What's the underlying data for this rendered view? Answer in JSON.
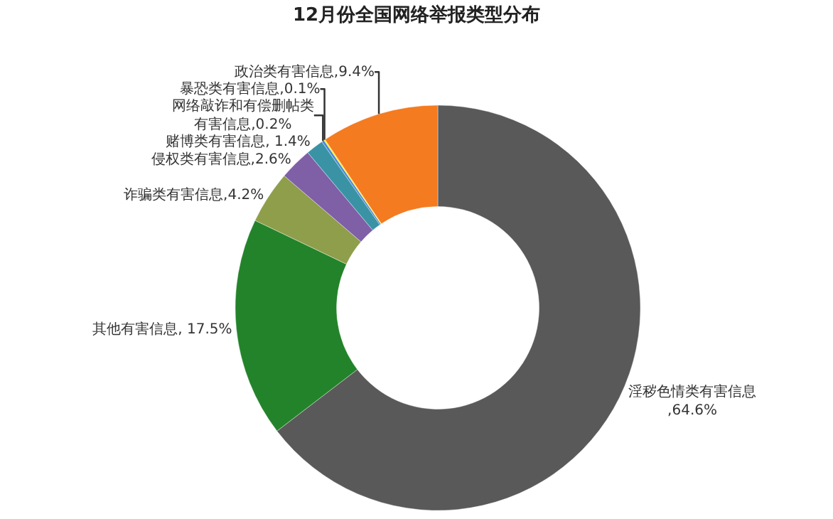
{
  "chart_data": {
    "type": "donut",
    "title": "12月份全国网络举报类型分布",
    "categories": [
      "淫秽色情类有害信息",
      "其他有害信息",
      "诈骗类有害信息",
      "侵权类有害信息",
      "赌博类有害信息",
      "网络敲诈和有偿删帖类有害信息",
      "暴恐类有害信息",
      "政治类有害信息"
    ],
    "values": [
      64.6,
      17.5,
      4.2,
      2.6,
      1.4,
      0.2,
      0.1,
      9.4
    ],
    "value_labels": [
      ",64.6%",
      ", 17.5%",
      ",4.2%",
      ",2.6%",
      ", 1.4%",
      ",0.2%",
      ",0.1%",
      ",9.4%"
    ],
    "colors": [
      "#595959",
      "#23832a",
      "#8e9e4a",
      "#7f5fa6",
      "#3a93a5",
      "#4a8ad8",
      "#fff200",
      "#f47b20"
    ],
    "legend": false
  }
}
